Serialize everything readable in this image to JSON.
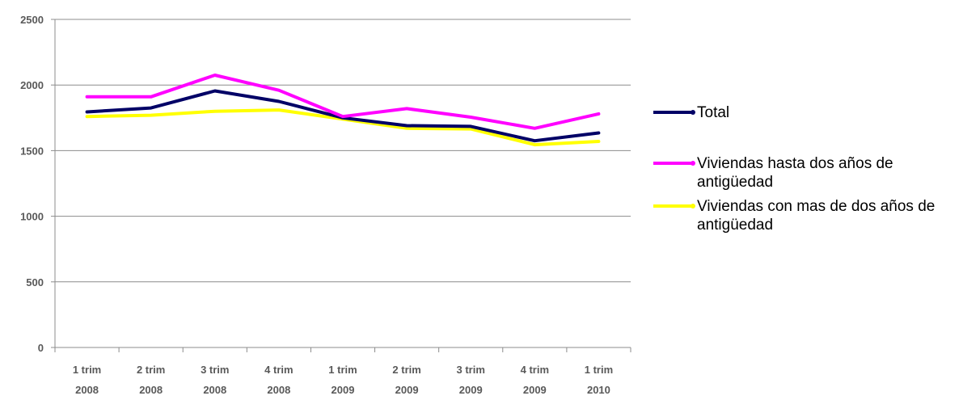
{
  "chart_data": {
    "type": "line",
    "categories": [
      [
        "1 trim",
        "2008"
      ],
      [
        "2 trim",
        "2008"
      ],
      [
        "3 trim",
        "2008"
      ],
      [
        "4 trim",
        "2008"
      ],
      [
        "1 trim",
        "2009"
      ],
      [
        "2 trim",
        "2009"
      ],
      [
        "3 trim",
        "2009"
      ],
      [
        "4 trim",
        "2009"
      ],
      [
        "1 trim",
        "2010"
      ]
    ],
    "series": [
      {
        "name": "Total",
        "color": "#000066",
        "values": [
          1795,
          1825,
          1955,
          1875,
          1750,
          1690,
          1685,
          1575,
          1635
        ]
      },
      {
        "name": "Viviendas hasta dos años de antigüedad",
        "color": "#ff00ff",
        "values": [
          1910,
          1910,
          2075,
          1960,
          1760,
          1820,
          1755,
          1670,
          1780
        ]
      },
      {
        "name": "Viviendas con mas de dos años de antigüedad",
        "color": "#ffff00",
        "values": [
          1760,
          1770,
          1800,
          1810,
          1740,
          1670,
          1665,
          1545,
          1570
        ]
      }
    ],
    "yticks": [
      "0",
      "500",
      "1000",
      "1500",
      "2000",
      "2500"
    ],
    "ylim": [
      0,
      2500
    ],
    "grid": true,
    "legend_position": "right"
  }
}
